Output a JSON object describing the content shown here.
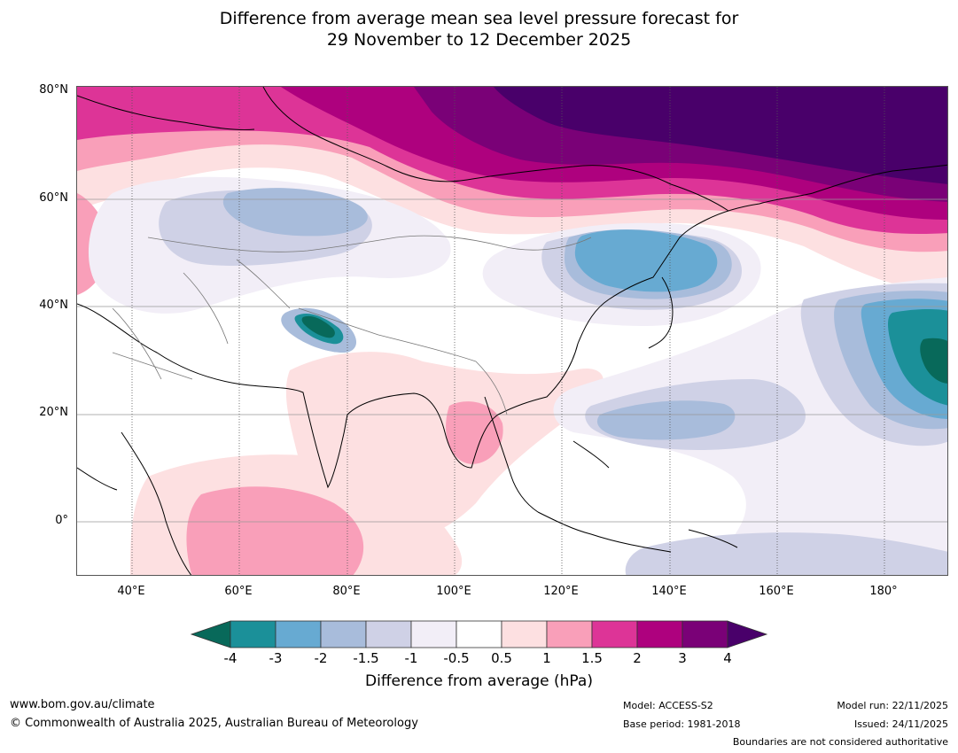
{
  "title": {
    "line1": "Difference from average mean sea level pressure forecast for",
    "line2": "29 November to 12 December 2025"
  },
  "axes": {
    "lat_labels": [
      "80°N",
      "60°N",
      "40°N",
      "20°N",
      "0°"
    ],
    "lon_labels": [
      "40°E",
      "60°E",
      "80°E",
      "100°E",
      "120°E",
      "140°E",
      "160°E",
      "180°"
    ]
  },
  "colorbar": {
    "ticks": [
      "-4",
      "-3",
      "-2",
      "-1.5",
      "-1",
      "-0.5",
      "0.5",
      "1",
      "1.5",
      "2",
      "3",
      "4"
    ],
    "colors": [
      "#08695a",
      "#1b9099",
      "#67aad2",
      "#a8bcdb",
      "#cfd1e6",
      "#f2eef7",
      "#ffffff",
      "#fde0e1",
      "#f99fb9",
      "#dd3497",
      "#ae017e",
      "#7a0177",
      "#49006a"
    ],
    "title": "Difference from average (hPa)"
  },
  "footer": {
    "url": "www.bom.gov.au/climate",
    "copyright": "© Commonwealth of Australia 2025, Australian Bureau of Meteorology",
    "model": "Model: ACCESS-S2",
    "base_period": "Base period: 1981-2018",
    "model_run": "Model run: 22/11/2025",
    "issued": "Issued: 24/11/2025",
    "boundaries": "Boundaries are not considered authoritative"
  }
}
